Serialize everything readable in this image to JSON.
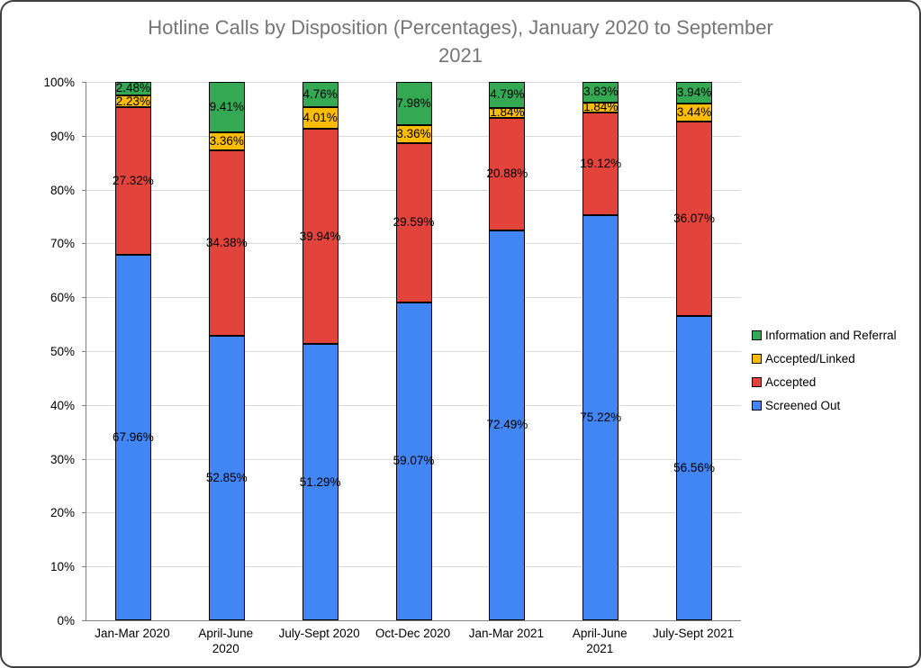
{
  "chart_data": {
    "type": "bar",
    "stacked": true,
    "orientation": "vertical",
    "title": "Hotline Calls by Disposition (Percentages), January 2020 to September 2021",
    "title_color": "#757575",
    "categories": [
      "Jan-Mar 2020",
      "April-June\n2020",
      "July-Sept 2020",
      "Oct-Dec 2020",
      "Jan-Mar 2021",
      "April-June\n2021",
      "July-Sept 2021"
    ],
    "series": [
      {
        "name": "Screened Out",
        "color": "#4285f4",
        "values": [
          67.96,
          52.85,
          51.29,
          59.07,
          72.49,
          75.22,
          56.56
        ]
      },
      {
        "name": "Accepted",
        "color": "#e2443b",
        "values": [
          27.32,
          34.38,
          39.94,
          29.59,
          20.88,
          19.12,
          36.07
        ]
      },
      {
        "name": "Accepted/Linked",
        "color": "#fbbc05",
        "values": [
          2.23,
          3.36,
          4.01,
          3.36,
          1.84,
          1.84,
          3.44
        ]
      },
      {
        "name": "Information and Referral",
        "color": "#34a853",
        "values": [
          2.48,
          9.41,
          4.76,
          7.98,
          4.79,
          3.83,
          3.94
        ]
      }
    ],
    "data_labels": [
      [
        "67.96%",
        "52.85%",
        "51.29%",
        "59.07%",
        "72.49%",
        "75.22%",
        "56.56%"
      ],
      [
        "27.32%",
        "34.38%",
        "39.94%",
        "29.59%",
        "20.88%",
        "19.12%",
        "36.07%"
      ],
      [
        "2.23%",
        "3.36%",
        "4.01%",
        "3.36%",
        "1.84%",
        "1.84%",
        "3.44%"
      ],
      [
        "2.48%",
        "9.41%",
        "4.76%",
        "7.98%",
        "4.79%",
        "3.83%",
        "3.94%"
      ]
    ],
    "y_axis": {
      "min": 0,
      "max": 100,
      "ticks": [
        "0%",
        "10%",
        "20%",
        "30%",
        "40%",
        "50%",
        "60%",
        "70%",
        "80%",
        "90%",
        "100%"
      ]
    },
    "grid": true,
    "gridline_color": "#d9d9d9",
    "legend_position": "right",
    "legend_order": [
      "Information and Referral",
      "Accepted/Linked",
      "Accepted",
      "Screened Out"
    ]
  }
}
